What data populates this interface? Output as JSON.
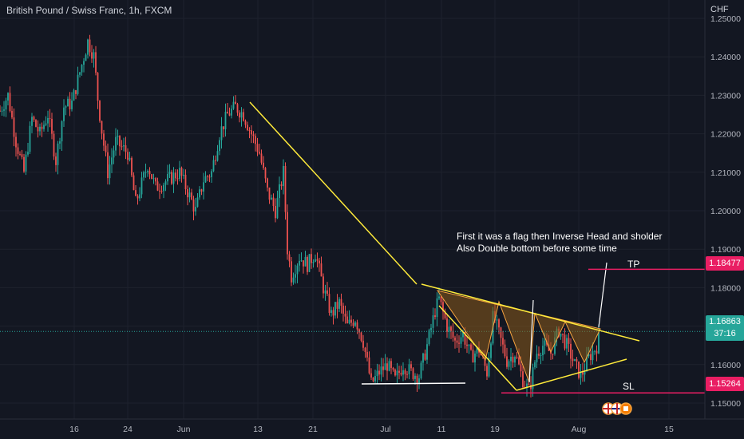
{
  "header": {
    "title": "British Pound / Swiss Franc, 1h, FXCM",
    "currency": "CHF"
  },
  "price_tags": {
    "tp": "1.18477",
    "sl": "1.15264",
    "current": "1.16863",
    "countdown": "37:16"
  },
  "labels": {
    "tp": "TP",
    "sl": "SL"
  },
  "annotation": {
    "line1": "First it was a flag then Inverse Head and sholder",
    "line2": "Also Double bottom before some time"
  },
  "colors": {
    "background": "#131722",
    "up": "#26a69a",
    "down": "#ef5350",
    "trendline": "#ffeb3b",
    "tp_sl": "#e91e63",
    "pattern_fill": "#8a5a19",
    "pattern_line": "#f7a440",
    "white": "#ffffff"
  },
  "chart_data": {
    "type": "candlestick",
    "title": "British Pound / Swiss Franc, 1h, FXCM",
    "ylabel": "CHF",
    "ylim": [
      1.145,
      1.255
    ],
    "y_ticks": [
      "1.15000",
      "1.16000",
      "1.17000",
      "1.18000",
      "1.19000",
      "1.20000",
      "1.21000",
      "1.22000",
      "1.23000",
      "1.24000",
      "1.25000"
    ],
    "x_ticks": [
      "16",
      "24",
      "Jun",
      "13",
      "21",
      "Jul",
      "11",
      "19",
      "Aug",
      "15"
    ],
    "path": [
      [
        0,
        1.226
      ],
      [
        10,
        1.23
      ],
      [
        20,
        1.218
      ],
      [
        30,
        1.21
      ],
      [
        40,
        1.224
      ],
      [
        50,
        1.22
      ],
      [
        60,
        1.225
      ],
      [
        70,
        1.213
      ],
      [
        80,
        1.227
      ],
      [
        90,
        1.228
      ],
      [
        100,
        1.236
      ],
      [
        110,
        1.244
      ],
      [
        118,
        1.24
      ],
      [
        122,
        1.23
      ],
      [
        128,
        1.22
      ],
      [
        135,
        1.21
      ],
      [
        145,
        1.218
      ],
      [
        160,
        1.215
      ],
      [
        170,
        1.202
      ],
      [
        185,
        1.212
      ],
      [
        195,
        1.206
      ],
      [
        210,
        1.208
      ],
      [
        225,
        1.21
      ],
      [
        235,
        1.205
      ],
      [
        245,
        1.2
      ],
      [
        255,
        1.208
      ],
      [
        265,
        1.21
      ],
      [
        275,
        1.22
      ],
      [
        285,
        1.225
      ],
      [
        295,
        1.227
      ],
      [
        305,
        1.225
      ],
      [
        315,
        1.22
      ],
      [
        325,
        1.215
      ],
      [
        335,
        1.205
      ],
      [
        345,
        1.2
      ],
      [
        355,
        1.21
      ],
      [
        360,
        1.19
      ],
      [
        365,
        1.183
      ],
      [
        375,
        1.188
      ],
      [
        385,
        1.186
      ],
      [
        395,
        1.189
      ],
      [
        405,
        1.18
      ],
      [
        415,
        1.173
      ],
      [
        425,
        1.176
      ],
      [
        435,
        1.17
      ],
      [
        445,
        1.172
      ],
      [
        455,
        1.166
      ],
      [
        465,
        1.155
      ],
      [
        475,
        1.158
      ],
      [
        485,
        1.16
      ],
      [
        495,
        1.156
      ],
      [
        505,
        1.16
      ],
      [
        515,
        1.158
      ],
      [
        525,
        1.157
      ],
      [
        535,
        1.165
      ],
      [
        545,
        1.174
      ],
      [
        550,
        1.177
      ],
      [
        560,
        1.17
      ],
      [
        570,
        1.166
      ],
      [
        580,
        1.168
      ],
      [
        590,
        1.162
      ],
      [
        600,
        1.164
      ],
      [
        610,
        1.158
      ],
      [
        618,
        1.173
      ],
      [
        625,
        1.168
      ],
      [
        635,
        1.161
      ],
      [
        645,
        1.163
      ],
      [
        655,
        1.156
      ],
      [
        663,
        1.153
      ],
      [
        672,
        1.163
      ],
      [
        680,
        1.165
      ],
      [
        690,
        1.163
      ],
      [
        700,
        1.169
      ],
      [
        710,
        1.165
      ],
      [
        720,
        1.16
      ],
      [
        728,
        1.157
      ],
      [
        738,
        1.162
      ],
      [
        748,
        1.165
      ],
      [
        752,
        1.1686
      ]
    ],
    "price_lines": [
      {
        "label": "TP",
        "value": 1.18477
      },
      {
        "label": "SL",
        "value": 1.15264
      }
    ],
    "annotations": [
      "First it was a flag then Inverse Head and sholder",
      "Also Double bottom before some time"
    ]
  }
}
